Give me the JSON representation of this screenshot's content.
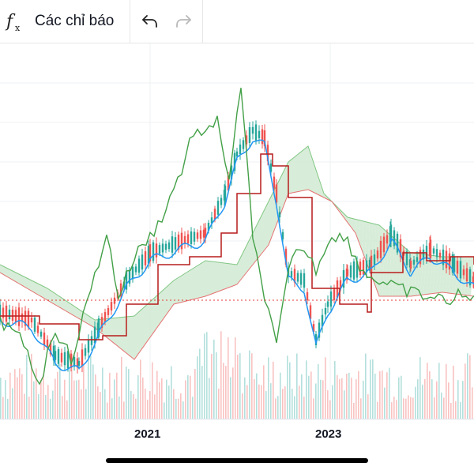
{
  "toolbar": {
    "indicators_icon": "fx-icon",
    "indicators_label": "Các chỉ báo",
    "undo_icon": "undo-icon",
    "redo_icon": "redo-icon"
  },
  "chart": {
    "x_ticks": [
      "2021",
      "2023"
    ],
    "colors": {
      "up": "#26a69a",
      "down": "#ef5350",
      "conversion_line": "#2196f3",
      "base_line": "#b71c1c",
      "lagging_span": "#43a047",
      "cloud_bull": "#c8e6c9",
      "cloud_bear": "#ffcdd2",
      "price_line": "#e53935"
    }
  }
}
